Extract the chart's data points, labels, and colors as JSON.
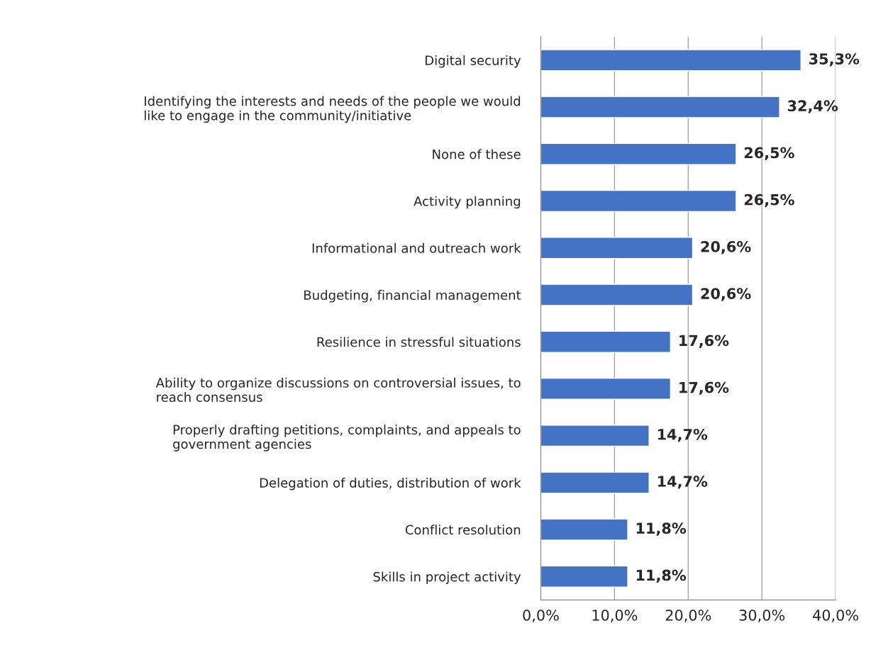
{
  "chart_data": {
    "type": "bar",
    "orientation": "horizontal",
    "categories": [
      "Digital security",
      "Identifying the interests and needs of the people we would\nlike to engage in the community/initiative",
      "None of these",
      "Activity planning",
      "Informational and outreach work",
      "Budgeting, financial management",
      "Resilience in stressful situations",
      "Ability to organize discussions on controversial issues, to\nreach consensus",
      "Properly drafting petitions, complaints, and appeals to\ngovernment agencies",
      "Delegation of duties, distribution of work",
      "Conflict resolution",
      "Skills in project activity"
    ],
    "values": [
      35.3,
      32.4,
      26.5,
      26.5,
      20.6,
      20.6,
      17.6,
      17.6,
      14.7,
      14.7,
      11.8,
      11.8
    ],
    "value_labels": [
      "35,3%",
      "32,4%",
      "26,5%",
      "26,5%",
      "20,6%",
      "20,6%",
      "17,6%",
      "17,6%",
      "14,7%",
      "14,7%",
      "11,8%",
      "11,8%"
    ],
    "color": "#4472c4",
    "xlim": [
      0,
      40
    ],
    "xticks": [
      {
        "value": 0,
        "label": "0,0%"
      },
      {
        "value": 10,
        "label": "10,0%"
      },
      {
        "value": 20,
        "label": "20,0%"
      },
      {
        "value": 30,
        "label": "30,0%"
      },
      {
        "value": 40,
        "label": "40,0%"
      }
    ],
    "grid": "x"
  }
}
